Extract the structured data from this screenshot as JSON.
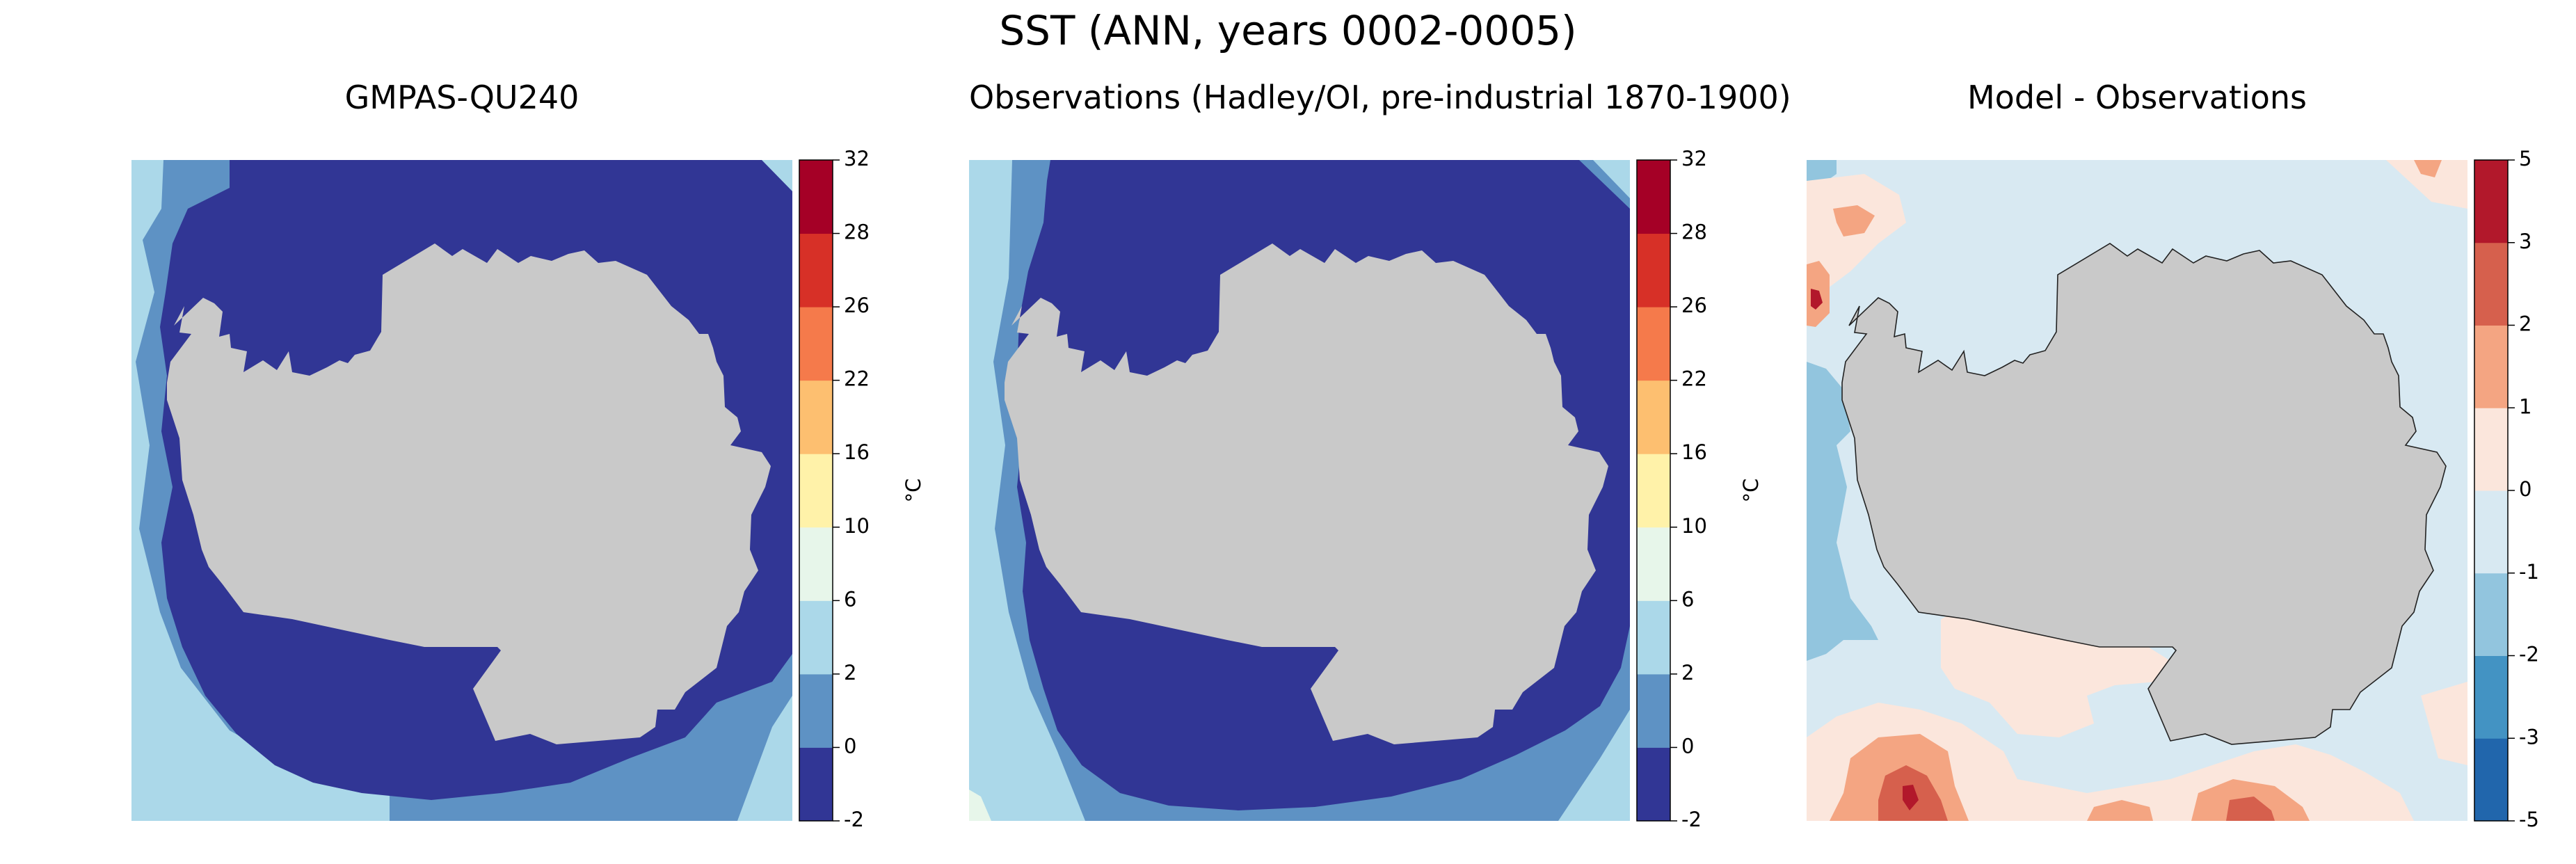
{
  "figure_title": "SST (ANN, years 0002-0005)",
  "colors": {
    "land": "#c9c9c9",
    "sst_scale": [
      "#313695",
      "#5e92c4",
      "#abd8e9",
      "#e7f6ea",
      "#fff2a9",
      "#fdbf70",
      "#f57a4b",
      "#d73027",
      "#a50026"
    ],
    "diff_scale": [
      "#2166ac",
      "#4393c3",
      "#92c5de",
      "#d8e9f2",
      "#fbe6dc",
      "#f4a582",
      "#d6604d",
      "#b2182b"
    ]
  },
  "chart_data": [
    {
      "type": "contourf",
      "title": "GMPAS-QU240",
      "projection": "Antarctic polar stereographic",
      "land_outline": false,
      "colorbar": {
        "label": "°C",
        "levels": [
          -2,
          0,
          2,
          6,
          10,
          16,
          22,
          26,
          28,
          32
        ],
        "tick_labels": [
          "-2",
          "0",
          "2",
          "6",
          "10",
          "16",
          "22",
          "26",
          "28",
          "32"
        ]
      },
      "fields_by_level_band": [
        {
          "range": [
            -2,
            0
          ],
          "color": "#313695",
          "region": "near-coastal Antarctic ocean ring"
        },
        {
          "range": [
            0,
            2
          ],
          "color": "#5e92c4",
          "region": "outer Southern Ocean"
        },
        {
          "range": [
            2,
            6
          ],
          "color": "#abd8e9",
          "region": "map corners / northern edge"
        }
      ]
    },
    {
      "type": "contourf",
      "title": "Observations (Hadley/OI, pre-industrial 1870-1900)",
      "projection": "Antarctic polar stereographic",
      "land_outline": false,
      "colorbar": {
        "label": "°C",
        "levels": [
          -2,
          0,
          2,
          6,
          10,
          16,
          22,
          26,
          28,
          32
        ],
        "tick_labels": [
          "-2",
          "0",
          "2",
          "6",
          "10",
          "16",
          "22",
          "26",
          "28",
          "32"
        ]
      },
      "fields_by_level_band": [
        {
          "range": [
            -2,
            0
          ],
          "color": "#313695",
          "region": "near-coastal Antarctic ocean ring"
        },
        {
          "range": [
            0,
            2
          ],
          "color": "#5e92c4",
          "region": "outer Southern Ocean"
        },
        {
          "range": [
            2,
            6
          ],
          "color": "#abd8e9",
          "region": "map corners / northern edge"
        },
        {
          "range": [
            6,
            10
          ],
          "color": "#e7f6ea",
          "region": "lower-left corner"
        }
      ]
    },
    {
      "type": "contourf",
      "title": "Model - Observations",
      "projection": "Antarctic polar stereographic",
      "land_outline": true,
      "colorbar": {
        "label": "°C",
        "levels": [
          -5,
          -3,
          -2,
          -1,
          0,
          1,
          2,
          3,
          5
        ],
        "tick_labels": [
          "-5",
          "-3",
          "-2",
          "-1",
          "0",
          "1",
          "2",
          "3",
          "5"
        ]
      },
      "fields_by_level_band": [
        {
          "range": [
            -1,
            0
          ],
          "color": "#d8e9f2",
          "region": "most of the ocean"
        },
        {
          "range": [
            -2,
            -1
          ],
          "color": "#92c5de",
          "region": "western edge"
        },
        {
          "range": [
            0,
            1
          ],
          "color": "#fbe6dc",
          "region": "scattered patches, mostly north"
        },
        {
          "range": [
            1,
            2
          ],
          "color": "#f4a582",
          "region": "northern edge patches"
        },
        {
          "range": [
            2,
            3
          ],
          "color": "#d6604d",
          "region": "small northern spots"
        },
        {
          "range": [
            3,
            5
          ],
          "color": "#b2182b",
          "region": "tiny spots at the north and west edges"
        }
      ]
    }
  ]
}
